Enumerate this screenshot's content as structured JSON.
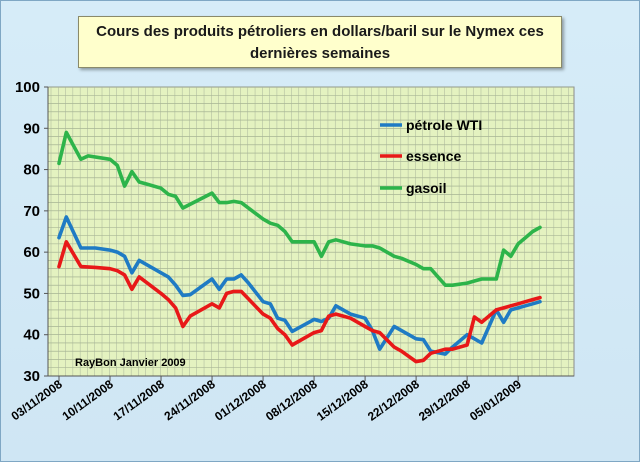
{
  "chart_data": {
    "type": "line",
    "title_lines": [
      "Cours des produits pétroliers en dollars/baril sur le Nymex ces",
      "dernières semaines"
    ],
    "xlabel": "",
    "ylabel": "",
    "ylim": [
      30,
      100
    ],
    "yticks": [
      30,
      40,
      50,
      60,
      70,
      80,
      90,
      100
    ],
    "x_ticks": [
      "03/11/2008",
      "10/11/2008",
      "17/11/2008",
      "24/11/2008",
      "01/12/2008",
      "08/12/2008",
      "15/12/2008",
      "22/12/2008",
      "29/12/2008",
      "05/01/2009"
    ],
    "x_day_range": [
      0,
      66
    ],
    "grid": true,
    "legend_position": "top-right",
    "annotation": "RayBon Janvier 2009",
    "series": [
      {
        "name": "pétrole WTI",
        "color": "#1f7bc4",
        "x": [
          0,
          1,
          3,
          5,
          7,
          8,
          9,
          10,
          11,
          14,
          15,
          16,
          17,
          18,
          21,
          22,
          23,
          24,
          25,
          26,
          28,
          29,
          30,
          31,
          32,
          35,
          36,
          37,
          38,
          39,
          40,
          42,
          43,
          44,
          46,
          47,
          49,
          50,
          51,
          53,
          54,
          56,
          57,
          58,
          60,
          61,
          62,
          63,
          64,
          65,
          66
        ],
        "y": [
          63.5,
          68.5,
          61,
          61,
          60.5,
          60,
          59,
          55,
          58,
          55,
          54,
          52,
          49.5,
          49.7,
          53.5,
          51,
          53.5,
          53.5,
          54.5,
          52.5,
          48,
          47.5,
          44,
          43.5,
          40.8,
          43.7,
          43.2,
          44,
          47,
          46,
          45,
          44,
          41,
          36.5,
          42,
          41,
          39,
          38.8,
          36,
          35.3,
          37,
          40,
          39,
          38,
          46,
          43,
          46,
          46.5,
          47,
          47.5,
          48
        ]
      },
      {
        "name": "essence",
        "color": "#e81818",
        "x": [
          0,
          1,
          3,
          5,
          7,
          8,
          9,
          10,
          11,
          14,
          15,
          16,
          17,
          18,
          21,
          22,
          23,
          24,
          25,
          28,
          29,
          30,
          31,
          32,
          35,
          36,
          37,
          38,
          39,
          40,
          42,
          43,
          44,
          46,
          47,
          49,
          50,
          51,
          53,
          54,
          56,
          57,
          58,
          60,
          61,
          62,
          63,
          64,
          65,
          66
        ],
        "y": [
          56.5,
          62.5,
          56.5,
          56.3,
          56,
          55.5,
          54.5,
          51,
          54,
          50,
          48.5,
          46.5,
          42,
          44.5,
          47.5,
          46.5,
          50,
          50.5,
          50.5,
          45,
          44,
          41.5,
          40,
          37.5,
          40.5,
          41,
          44.5,
          45,
          44.5,
          44,
          42,
          41,
          40.5,
          37,
          36,
          33.5,
          33.8,
          35.5,
          36.5,
          36.5,
          37.5,
          44.3,
          43,
          46,
          46.5,
          47,
          47.5,
          48,
          48.5,
          49
        ]
      },
      {
        "name": "gasoil",
        "color": "#2db44a",
        "x": [
          0,
          1,
          3,
          4,
          7,
          8,
          9,
          10,
          11,
          12,
          14,
          15,
          16,
          17,
          21,
          22,
          23,
          24,
          25,
          28,
          29,
          30,
          31,
          32,
          35,
          36,
          37,
          38,
          39,
          40,
          42,
          43,
          44,
          46,
          47,
          49,
          50,
          51,
          53,
          54,
          56,
          57,
          58,
          59,
          60,
          61,
          62,
          63,
          64,
          65,
          66
        ],
        "y": [
          81.5,
          89,
          82.5,
          83.3,
          82.5,
          81,
          76,
          79.5,
          77,
          76.5,
          75.5,
          74,
          73.5,
          70.7,
          74.3,
          72,
          72,
          72.3,
          72,
          68,
          67,
          66.5,
          65,
          62.5,
          62.5,
          59,
          62.5,
          63,
          62.5,
          62,
          61.5,
          61.5,
          61,
          59,
          58.5,
          57,
          56,
          56,
          52,
          52,
          52.5,
          53,
          53.5,
          53.5,
          53.5,
          60.5,
          59,
          62,
          63.5,
          65,
          66
        ]
      }
    ]
  }
}
